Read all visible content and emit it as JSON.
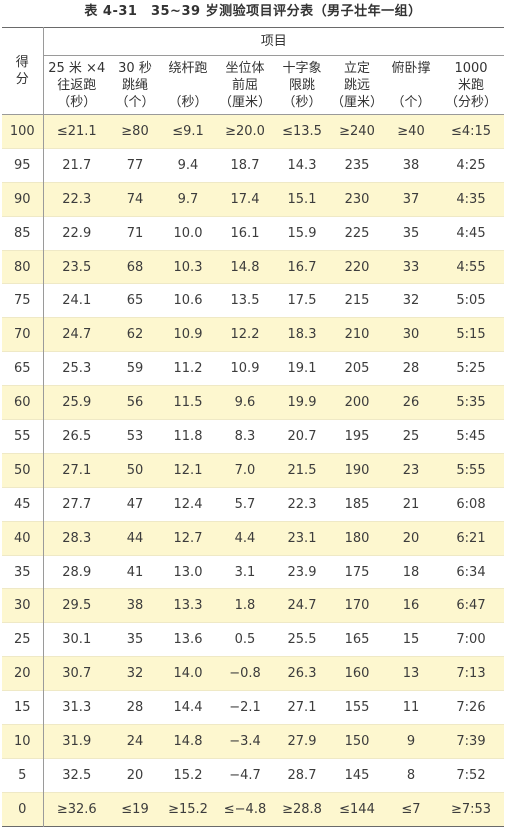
{
  "table_title": "表 4-31　35~39 岁测验项目评分表（男子壮年一组）",
  "header": {
    "score": [
      "得",
      "分"
    ],
    "items_label": "项目",
    "columns": [
      [
        "25 米 ×4",
        "往返跑",
        "（秒）"
      ],
      [
        "30 秒",
        "跳绳",
        "（个）"
      ],
      [
        "绕杆跑",
        "",
        "（秒）"
      ],
      [
        "坐位体",
        "前屈",
        "（厘米）"
      ],
      [
        "十字象",
        "限跳",
        "（秒）"
      ],
      [
        "立定",
        "跳远",
        "（厘米）"
      ],
      [
        "俯卧撑",
        "",
        "（个）"
      ],
      [
        "1000",
        "米跑",
        "（分秒）"
      ]
    ]
  },
  "rows": [
    {
      "score": "100",
      "values": [
        "≤21.1",
        "≥80",
        "≤9.1",
        "≥20.0",
        "≤13.5",
        "≥240",
        "≥40",
        "≤4:15"
      ]
    },
    {
      "score": "95",
      "values": [
        "21.7",
        "77",
        "9.4",
        "18.7",
        "14.3",
        "235",
        "38",
        "4:25"
      ]
    },
    {
      "score": "90",
      "values": [
        "22.3",
        "74",
        "9.7",
        "17.4",
        "15.1",
        "230",
        "37",
        "4:35"
      ]
    },
    {
      "score": "85",
      "values": [
        "22.9",
        "71",
        "10.0",
        "16.1",
        "15.9",
        "225",
        "35",
        "4:45"
      ]
    },
    {
      "score": "80",
      "values": [
        "23.5",
        "68",
        "10.3",
        "14.8",
        "16.7",
        "220",
        "33",
        "4:55"
      ]
    },
    {
      "score": "75",
      "values": [
        "24.1",
        "65",
        "10.6",
        "13.5",
        "17.5",
        "215",
        "32",
        "5:05"
      ]
    },
    {
      "score": "70",
      "values": [
        "24.7",
        "62",
        "10.9",
        "12.2",
        "18.3",
        "210",
        "30",
        "5:15"
      ]
    },
    {
      "score": "65",
      "values": [
        "25.3",
        "59",
        "11.2",
        "10.9",
        "19.1",
        "205",
        "28",
        "5:25"
      ]
    },
    {
      "score": "60",
      "values": [
        "25.9",
        "56",
        "11.5",
        "9.6",
        "19.9",
        "200",
        "26",
        "5:35"
      ]
    },
    {
      "score": "55",
      "values": [
        "26.5",
        "53",
        "11.8",
        "8.3",
        "20.7",
        "195",
        "25",
        "5:45"
      ]
    },
    {
      "score": "50",
      "values": [
        "27.1",
        "50",
        "12.1",
        "7.0",
        "21.5",
        "190",
        "23",
        "5:55"
      ]
    },
    {
      "score": "45",
      "values": [
        "27.7",
        "47",
        "12.4",
        "5.7",
        "22.3",
        "185",
        "21",
        "6:08"
      ]
    },
    {
      "score": "40",
      "values": [
        "28.3",
        "44",
        "12.7",
        "4.4",
        "23.1",
        "180",
        "20",
        "6:21"
      ]
    },
    {
      "score": "35",
      "values": [
        "28.9",
        "41",
        "13.0",
        "3.1",
        "23.9",
        "175",
        "18",
        "6:34"
      ]
    },
    {
      "score": "30",
      "values": [
        "29.5",
        "38",
        "13.3",
        "1.8",
        "24.7",
        "170",
        "16",
        "6:47"
      ]
    },
    {
      "score": "25",
      "values": [
        "30.1",
        "35",
        "13.6",
        "0.5",
        "25.5",
        "165",
        "15",
        "7:00"
      ]
    },
    {
      "score": "20",
      "values": [
        "30.7",
        "32",
        "14.0",
        "−0.8",
        "26.3",
        "160",
        "13",
        "7:13"
      ]
    },
    {
      "score": "15",
      "values": [
        "31.3",
        "28",
        "14.4",
        "−2.1",
        "27.1",
        "155",
        "11",
        "7:26"
      ]
    },
    {
      "score": "10",
      "values": [
        "31.9",
        "24",
        "14.8",
        "−3.4",
        "27.9",
        "150",
        "9",
        "7:39"
      ]
    },
    {
      "score": "5",
      "values": [
        "32.5",
        "20",
        "15.2",
        "−4.7",
        "28.7",
        "145",
        "8",
        "7:52"
      ]
    },
    {
      "score": "0",
      "values": [
        "≥32.6",
        "≤19",
        "≥15.2",
        "≤−4.8",
        "≥28.8",
        "≤144",
        "≤7",
        "≥7:53"
      ]
    }
  ],
  "colors": {
    "row_highlight": "#fdf7cf",
    "rule": "#6a6a6a",
    "text": "#3c3c3c"
  }
}
